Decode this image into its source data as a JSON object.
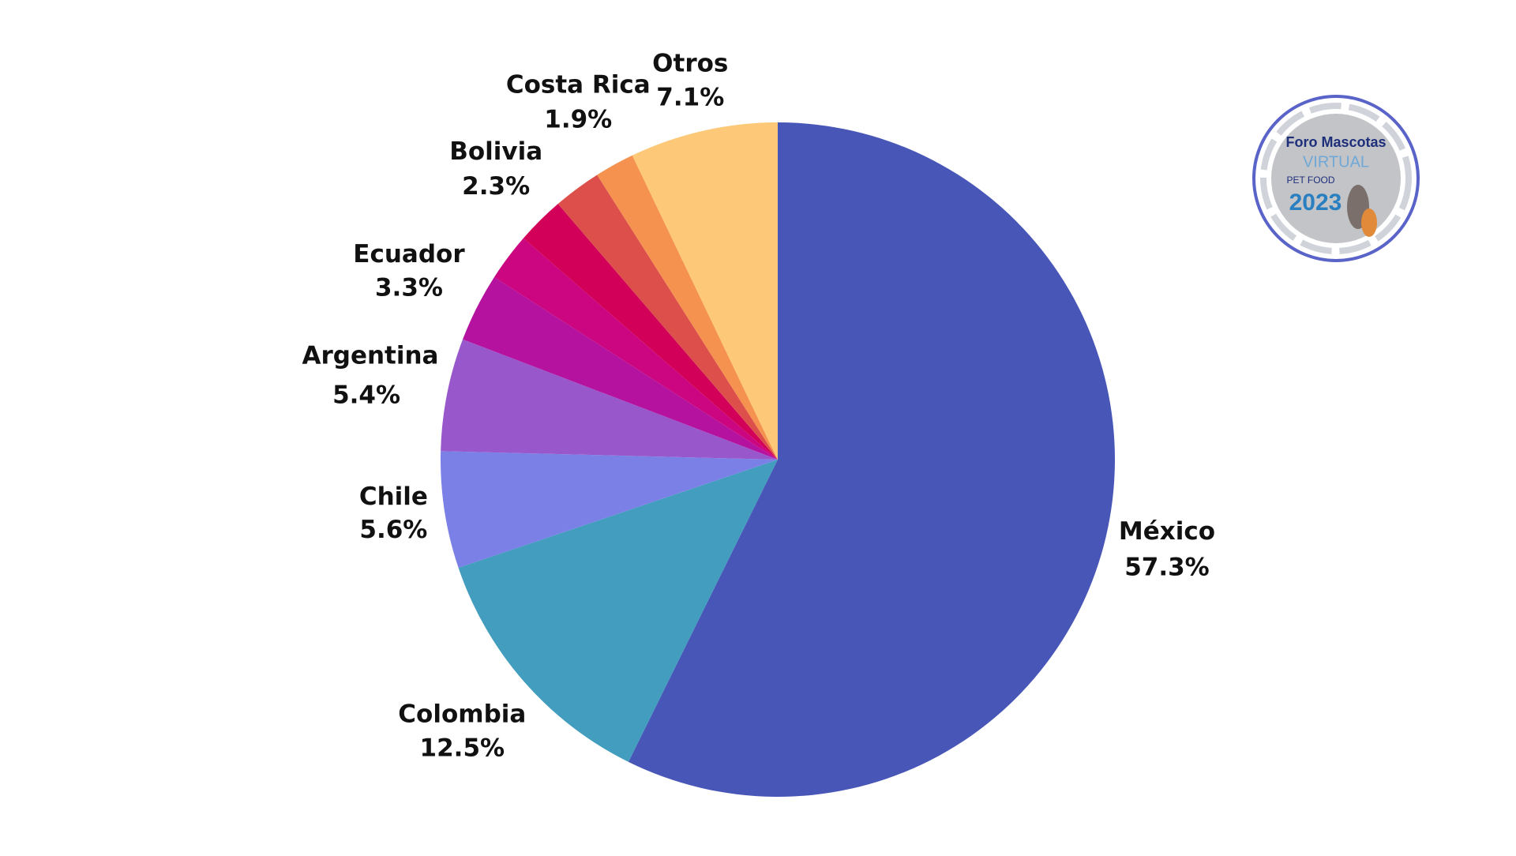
{
  "chart_data": {
    "type": "pie",
    "categories": [
      "México",
      "Colombia",
      "Chile",
      "Argentina",
      "Ecuador",
      null,
      null,
      "Bolivia",
      "Costa Rica",
      "Otros"
    ],
    "values": [
      57.3,
      12.5,
      5.6,
      5.4,
      3.3,
      2.3,
      2.3,
      2.3,
      1.9,
      7.1
    ],
    "value_labels": [
      "57.3%",
      "12.5%",
      "5.6%",
      "5.4%",
      "3.3%",
      null,
      null,
      "2.3%",
      "1.9%",
      "7.1%"
    ],
    "colors": [
      "#4856b7",
      "#439dbf",
      "#7b80e6",
      "#9858cc",
      "#b5139f",
      "#cc0580",
      "#d20058",
      "#dd4f4a",
      "#f5924f",
      "#fdc878"
    ]
  },
  "logo": {
    "line1": "Foro Mascotas",
    "line2": "VIRTUAL",
    "line3": "PET FOOD",
    "line4": "2023"
  }
}
